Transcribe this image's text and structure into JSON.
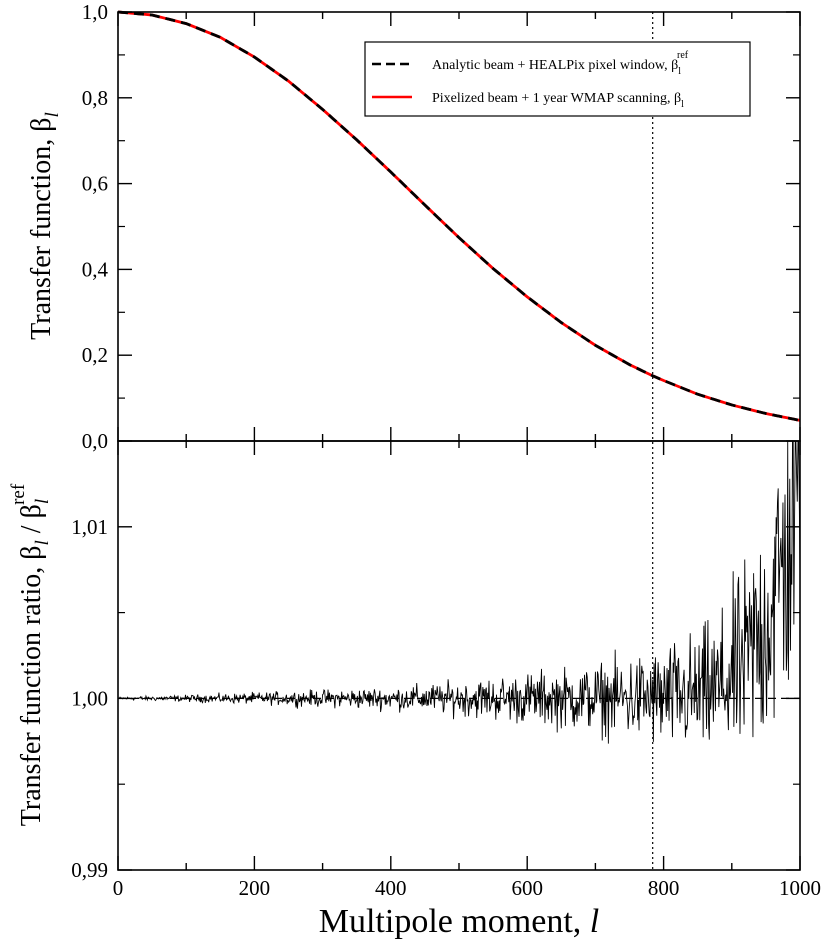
{
  "chart_data": [
    {
      "type": "line",
      "panel": "top",
      "xlabel": "",
      "ylabel": "Transfer function, β",
      "ylabel_sub": "l",
      "xlim": [
        0,
        1000
      ],
      "ylim": [
        0.0,
        1.0
      ],
      "yticks": [
        0.0,
        0.2,
        0.4,
        0.6,
        0.8,
        1.0
      ],
      "ytick_labels": [
        "0,0",
        "0,2",
        "0,4",
        "0,6",
        "0,8",
        "1,0"
      ],
      "reference_line_x": 784,
      "series": [
        {
          "name": "Analytic beam + HEALPix pixel window, β",
          "sub": "l",
          "sup": "ref",
          "color": "#000000",
          "style": "dashed",
          "x": [
            0,
            50,
            100,
            150,
            200,
            250,
            300,
            350,
            400,
            450,
            500,
            550,
            600,
            650,
            700,
            750,
            784,
            800,
            850,
            900,
            950,
            1000
          ],
          "values": [
            1.0,
            0.993,
            0.973,
            0.941,
            0.895,
            0.839,
            0.773,
            0.702,
            0.627,
            0.55,
            0.474,
            0.402,
            0.336,
            0.276,
            0.223,
            0.178,
            0.152,
            0.141,
            0.109,
            0.084,
            0.064,
            0.048
          ]
        },
        {
          "name": "Pixelized beam + 1 year WMAP scanning, β",
          "sub": "l",
          "sup": "",
          "color": "#ff0000",
          "style": "solid",
          "x": [
            0,
            50,
            100,
            150,
            200,
            250,
            300,
            350,
            400,
            450,
            500,
            550,
            600,
            650,
            700,
            750,
            784,
            800,
            850,
            900,
            950,
            1000
          ],
          "values": [
            1.0,
            0.993,
            0.973,
            0.941,
            0.895,
            0.839,
            0.773,
            0.702,
            0.627,
            0.55,
            0.474,
            0.402,
            0.336,
            0.276,
            0.223,
            0.178,
            0.152,
            0.141,
            0.109,
            0.084,
            0.064,
            0.048
          ]
        }
      ]
    },
    {
      "type": "line",
      "panel": "bottom",
      "xlabel": "Multipole moment, l",
      "ylabel": "Transfer function ratio, β",
      "ylabel_sub": "l",
      "ylabel_sup": "ref",
      "xlim": [
        0,
        1000
      ],
      "ylim": [
        0.99,
        1.015
      ],
      "yticks": [
        0.99,
        1.0,
        1.01
      ],
      "ytick_labels": [
        "0,99",
        "1,00",
        "1,01"
      ],
      "xticks": [
        0,
        200,
        400,
        600,
        800,
        1000
      ],
      "xtick_labels": [
        "0",
        "200",
        "400",
        "600",
        "800",
        "1000"
      ],
      "reference_line_x": 784,
      "unity_line": 1.0,
      "series": [
        {
          "name": "ratio",
          "color": "#000000",
          "style": "solid",
          "noise_envelope": {
            "x": [
              0,
              100,
              200,
              300,
              400,
              500,
              600,
              700,
              750,
              800,
              850,
              880,
              900,
              920,
              940,
              960,
              980,
              1000
            ],
            "amplitude": [
              5e-05,
              0.00012,
              0.0002,
              0.0003,
              0.0004,
              0.0006,
              0.0009,
              0.0012,
              0.0015,
              0.0018,
              0.0022,
              0.0025,
              0.003,
              0.0035,
              0.0042,
              0.005,
              0.006,
              0.007
            ],
            "trend_x": [
              0,
              700,
              800,
              850,
              880,
              900,
              920,
              940,
              960,
              980,
              1000
            ],
            "trend": [
              1.0,
              1.0,
              1.0,
              1.0002,
              1.0006,
              1.0012,
              1.002,
              1.0035,
              1.0055,
              1.0085,
              1.012
            ]
          }
        }
      ]
    }
  ]
}
